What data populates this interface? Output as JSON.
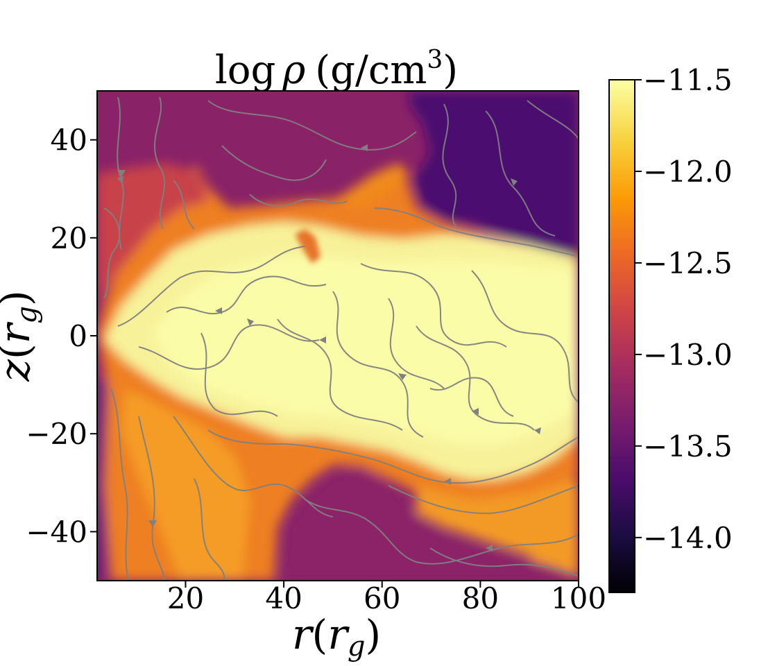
{
  "chart_data": {
    "type": "heatmap",
    "title": "log ρ (g/cm³)",
    "title_parts": {
      "prefix": "log",
      "symbol": "ρ",
      "unit_open": "(g/cm",
      "unit_sup": "3",
      "unit_close": ")"
    },
    "xlabel": {
      "var": "r",
      "unit": "g"
    },
    "ylabel": {
      "var": "z",
      "unit": "g"
    },
    "xlim": [
      2,
      100
    ],
    "ylim": [
      -50,
      50
    ],
    "xticks": [
      {
        "value": 20,
        "label": "20"
      },
      {
        "value": 40,
        "label": "40"
      },
      {
        "value": 60,
        "label": "60"
      },
      {
        "value": 80,
        "label": "80"
      },
      {
        "value": 100,
        "label": "100"
      }
    ],
    "yticks": [
      {
        "value": 40,
        "label": "40"
      },
      {
        "value": 20,
        "label": "20"
      },
      {
        "value": 0,
        "label": "0"
      },
      {
        "value": -20,
        "label": "−20"
      },
      {
        "value": -40,
        "label": "−40"
      }
    ],
    "colorbar": {
      "colormap": "inferno",
      "range": [
        -14.3,
        -11.5
      ],
      "ticks": [
        {
          "value": -11.5,
          "label": "−11.5"
        },
        {
          "value": -12.0,
          "label": "−12.0"
        },
        {
          "value": -12.5,
          "label": "−12.5"
        },
        {
          "value": -13.0,
          "label": "−13.0"
        },
        {
          "value": -13.5,
          "label": "−13.5"
        },
        {
          "value": -14.0,
          "label": "−14.0"
        }
      ],
      "stops": [
        "#000004",
        "#1b0c41",
        "#4a0c6b",
        "#781c6d",
        "#a52c60",
        "#cf4446",
        "#ed6925",
        "#fb9b06",
        "#f7d13d",
        "#fcffa4"
      ]
    },
    "streamline_color": "#808080",
    "grid": false
  }
}
